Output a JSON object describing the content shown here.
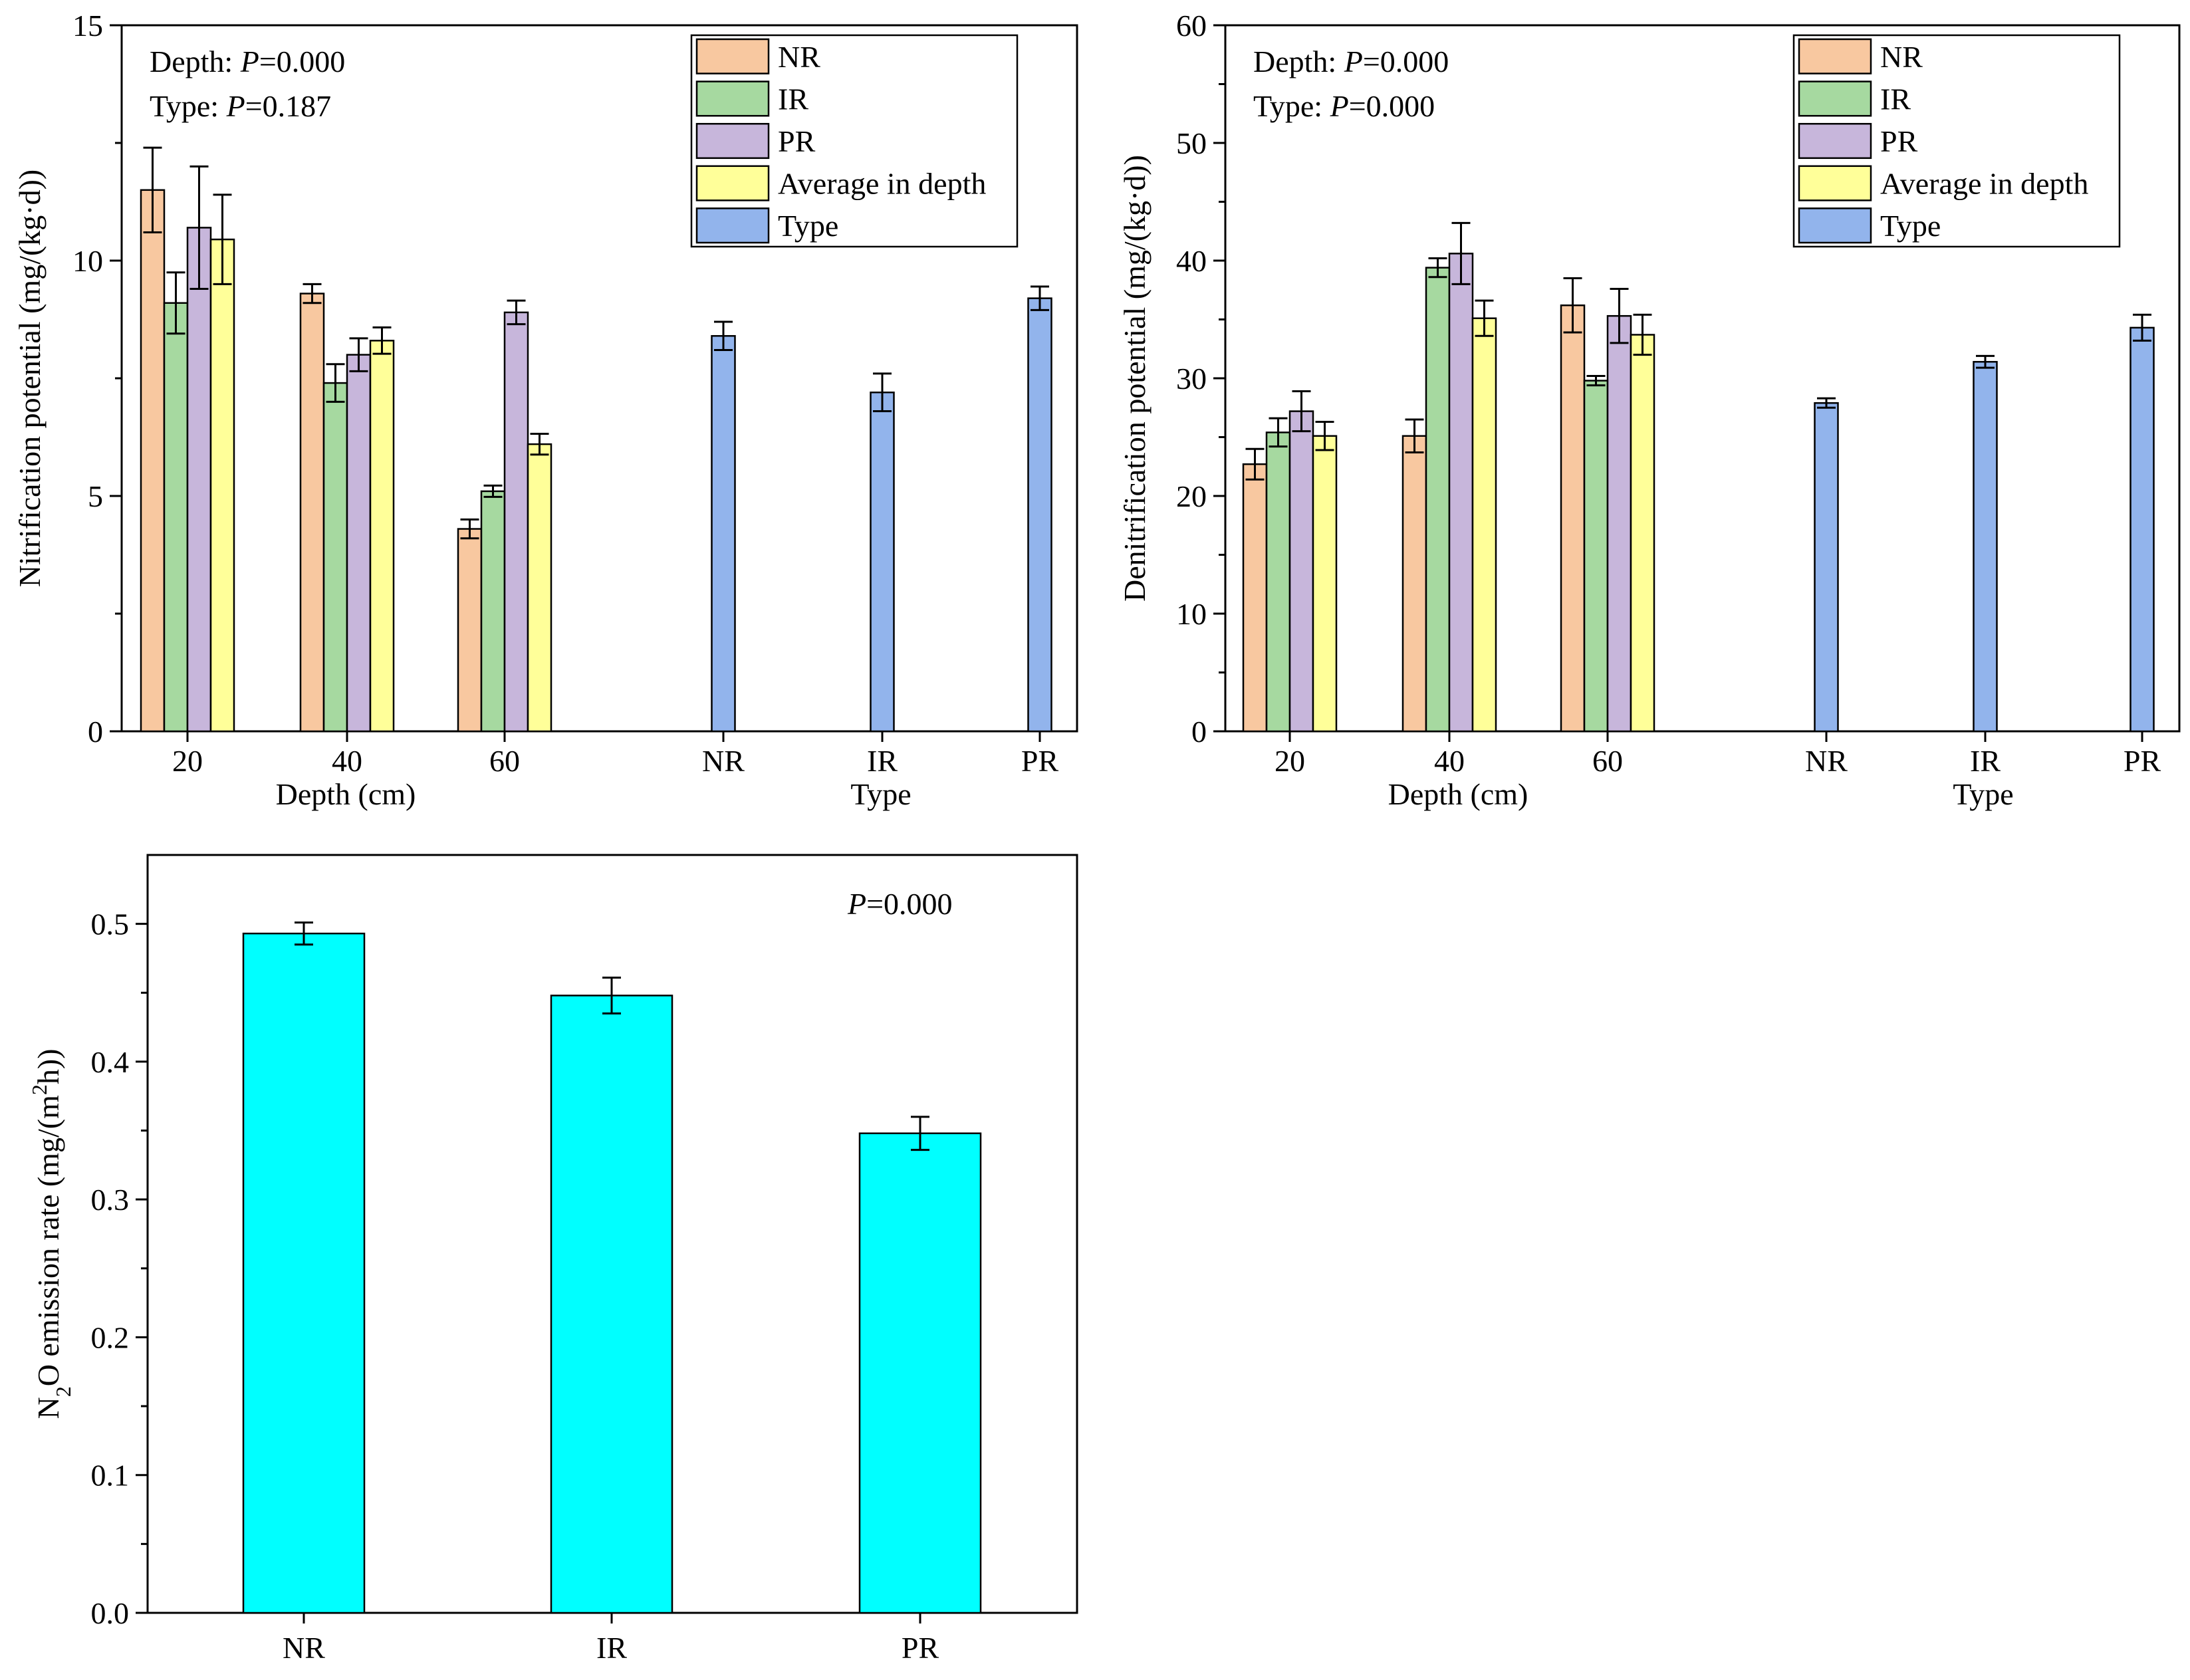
{
  "chart_data": [
    {
      "id": "nitrification",
      "type": "bar",
      "ylabel": "Nitrification potential (mg/(kg·d))",
      "ylim": [
        0,
        15
      ],
      "yticks": [
        0,
        5,
        10,
        15
      ],
      "annotations": [
        {
          "label": "Depth: ",
          "p_symbol": "P",
          "value": "=0.000"
        },
        {
          "label": "Type: ",
          "p_symbol": "P",
          "value": "=0.187"
        }
      ],
      "groups": [
        {
          "xlabel": "Depth (cm)",
          "categories": [
            "20",
            "40",
            "60"
          ],
          "series": [
            {
              "name": "NR",
              "color": "#f8c8a0",
              "values": [
                11.5,
                9.3,
                4.3
              ],
              "errors": [
                0.9,
                0.2,
                0.2
              ]
            },
            {
              "name": "IR",
              "color": "#a6d9a0",
              "values": [
                9.1,
                7.4,
                5.1
              ],
              "errors": [
                0.65,
                0.4,
                0.12
              ]
            },
            {
              "name": "PR",
              "color": "#c7b6db",
              "values": [
                10.7,
                8.0,
                8.9
              ],
              "errors": [
                1.3,
                0.35,
                0.25
              ]
            },
            {
              "name": "Average in depth",
              "color": "#ffff99",
              "values": [
                10.45,
                8.3,
                6.1
              ],
              "errors": [
                0.95,
                0.28,
                0.22
              ]
            }
          ]
        },
        {
          "xlabel": "Type",
          "categories": [
            "NR",
            "IR",
            "PR"
          ],
          "series": [
            {
              "name": "Type",
              "color": "#92b4ec",
              "values": [
                8.4,
                7.2,
                9.2
              ],
              "errors": [
                0.3,
                0.4,
                0.25
              ]
            }
          ]
        }
      ],
      "legend": [
        "NR",
        "IR",
        "PR",
        "Average in depth",
        "Type"
      ]
    },
    {
      "id": "denitrification",
      "type": "bar",
      "ylabel": "Denitrification potential (mg/(kg·d))",
      "ylim": [
        0,
        60
      ],
      "yticks": [
        0,
        10,
        20,
        30,
        40,
        50,
        60
      ],
      "annotations": [
        {
          "label": "Depth: ",
          "p_symbol": "P",
          "value": "=0.000"
        },
        {
          "label": "Type: ",
          "p_symbol": "P",
          "value": "=0.000"
        }
      ],
      "groups": [
        {
          "xlabel": "Depth (cm)",
          "categories": [
            "20",
            "40",
            "60"
          ],
          "series": [
            {
              "name": "NR",
              "color": "#f8c8a0",
              "values": [
                22.7,
                25.1,
                36.2
              ],
              "errors": [
                1.3,
                1.4,
                2.3
              ]
            },
            {
              "name": "IR",
              "color": "#a6d9a0",
              "values": [
                25.4,
                39.4,
                29.8
              ],
              "errors": [
                1.2,
                0.8,
                0.4
              ]
            },
            {
              "name": "PR",
              "color": "#c7b6db",
              "values": [
                27.2,
                40.6,
                35.3
              ],
              "errors": [
                1.7,
                2.6,
                2.3
              ]
            },
            {
              "name": "Average in depth",
              "color": "#ffff99",
              "values": [
                25.1,
                35.1,
                33.7
              ],
              "errors": [
                1.2,
                1.5,
                1.7
              ]
            }
          ]
        },
        {
          "xlabel": "Type",
          "categories": [
            "NR",
            "IR",
            "PR"
          ],
          "series": [
            {
              "name": "Type",
              "color": "#92b4ec",
              "values": [
                27.9,
                31.4,
                34.3
              ],
              "errors": [
                0.4,
                0.5,
                1.1
              ]
            }
          ]
        }
      ],
      "legend": [
        "NR",
        "IR",
        "PR",
        "Average in depth",
        "Type"
      ]
    },
    {
      "id": "n2o",
      "type": "bar",
      "ylabel_parts": [
        "N",
        "2",
        "O emission rate (mg/(m",
        "2",
        "h))"
      ],
      "ylim": [
        0,
        0.55
      ],
      "yticks": [
        0.0,
        0.1,
        0.2,
        0.3,
        0.4,
        0.5
      ],
      "ytick_labels": [
        "0.0",
        "0.1",
        "0.2",
        "0.3",
        "0.4",
        "0.5"
      ],
      "annotations": [
        {
          "label": "",
          "p_symbol": "P",
          "value": "=0.000"
        }
      ],
      "categories": [
        "NR",
        "IR",
        "PR"
      ],
      "series": [
        {
          "name": "N2O emission rate",
          "color": "#00ffff",
          "values": [
            0.493,
            0.448,
            0.348
          ],
          "errors": [
            0.008,
            0.013,
            0.012
          ]
        }
      ]
    }
  ]
}
